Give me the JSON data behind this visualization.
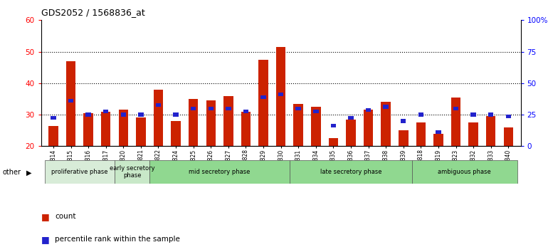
{
  "title": "GDS2052 / 1568836_at",
  "samples": [
    "GSM109814",
    "GSM109815",
    "GSM109816",
    "GSM109817",
    "GSM109820",
    "GSM109821",
    "GSM109822",
    "GSM109824",
    "GSM109825",
    "GSM109826",
    "GSM109827",
    "GSM109828",
    "GSM109829",
    "GSM109830",
    "GSM109831",
    "GSM109834",
    "GSM109835",
    "GSM109836",
    "GSM109837",
    "GSM109838",
    "GSM109839",
    "GSM109818",
    "GSM109819",
    "GSM109823",
    "GSM109832",
    "GSM109833",
    "GSM109840"
  ],
  "count_values": [
    26.5,
    47.0,
    30.5,
    31.0,
    31.5,
    29.0,
    38.0,
    28.0,
    35.0,
    34.5,
    36.0,
    31.0,
    47.5,
    51.5,
    33.5,
    32.5,
    22.5,
    28.5,
    31.5,
    34.0,
    25.0,
    27.5,
    24.0,
    35.5,
    27.5,
    29.5,
    26.0
  ],
  "percentile_values": [
    29.0,
    34.5,
    30.0,
    31.0,
    30.0,
    30.0,
    33.0,
    30.0,
    32.0,
    32.0,
    32.0,
    31.0,
    35.5,
    36.5,
    32.0,
    31.0,
    26.5,
    29.0,
    31.5,
    32.5,
    28.0,
    30.0,
    24.5,
    32.0,
    30.0,
    30.0,
    29.5
  ],
  "ymin": 20,
  "ymax": 60,
  "yticks": [
    20,
    30,
    40,
    50,
    60
  ],
  "right_yticks": [
    0,
    25,
    50,
    75,
    100
  ],
  "right_ytick_labels": [
    "0",
    "25",
    "50",
    "75",
    "100%"
  ],
  "bar_color": "#cc2200",
  "percentile_color": "#2222cc",
  "phases": [
    {
      "label": "proliferative phase",
      "start": 0,
      "end": 4,
      "color": "#d8ecd8"
    },
    {
      "label": "early secretory\nphase",
      "start": 4,
      "end": 6,
      "color": "#c8e8c8"
    },
    {
      "label": "mid secretory phase",
      "start": 6,
      "end": 14,
      "color": "#90d890"
    },
    {
      "label": "late secretory phase",
      "start": 14,
      "end": 21,
      "color": "#90d890"
    },
    {
      "label": "ambiguous phase",
      "start": 21,
      "end": 27,
      "color": "#90d890"
    }
  ],
  "other_label": "other",
  "legend_count_label": "count",
  "legend_percentile_label": "percentile rank within the sample",
  "bar_width": 0.55
}
